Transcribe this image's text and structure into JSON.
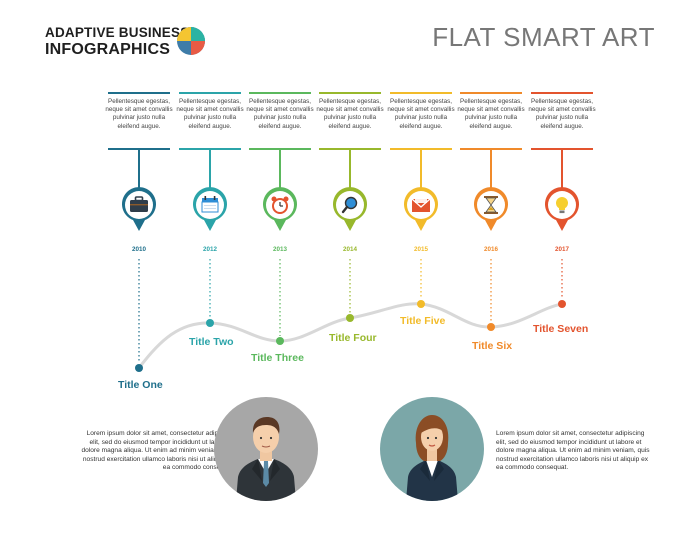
{
  "header": {
    "logo_line1": "ADAPTIVE BUSINESS",
    "logo_line2": "INFOGRAPHICS",
    "title": "FLAT SMART ART",
    "logo_colors": [
      "#f4c531",
      "#2bb3a3",
      "#3e7ca8",
      "#e85b45"
    ]
  },
  "steps": [
    {
      "year": "2010",
      "title": "Title One",
      "color": "#1f6f8b",
      "icon": "briefcase-icon",
      "text": "Pellentesque egestas, neque sit amet convallis pulvinar justo nulla eleifend augue."
    },
    {
      "year": "2012",
      "title": "Title Two",
      "color": "#2ba4a9",
      "icon": "calendar-icon",
      "text": "Pellentesque egestas, neque sit amet convallis pulvinar justo nulla eleifend augue."
    },
    {
      "year": "2013",
      "title": "Title Three",
      "color": "#5bb85d",
      "icon": "alarm-clock-icon",
      "text": "Pellentesque egestas, neque sit amet convallis pulvinar justo nulla eleifend augue."
    },
    {
      "year": "2014",
      "title": "Title Four",
      "color": "#98b82c",
      "icon": "magnifier-icon",
      "text": "Pellentesque egestas, neque sit amet convallis pulvinar justo nulla eleifend augue."
    },
    {
      "year": "2015",
      "title": "Title Five",
      "color": "#f2bb2a",
      "icon": "envelope-icon",
      "text": "Pellentesque egestas, neque sit amet convallis pulvinar justo nulla eleifend augue."
    },
    {
      "year": "2016",
      "title": "Title Six",
      "color": "#f08a2a",
      "icon": "hourglass-icon",
      "text": "Pellentesque egestas, neque sit amet convallis pulvinar justo nulla eleifend augue."
    },
    {
      "year": "2017",
      "title": "Title Seven",
      "color": "#e3542e",
      "icon": "lightbulb-icon",
      "text": "Pellentesque egestas, neque sit amet convallis pulvinar justo nulla eleifend augue."
    }
  ],
  "people": [
    {
      "icon": "businessman-icon",
      "text": "Lorem ipsum dolor sit amet, consectetur adipiscing elit, sed do eiusmod tempor incididunt ut labore et dolore magna aliqua. Ut enim ad minim veniam, quis nostrud exercitation ullamco laboris nisi ut aliquip ex ea commodo consequat."
    },
    {
      "icon": "businesswoman-icon",
      "text": "Lorem ipsum dolor sit amet, consectetur adipiscing elit, sed do eiusmod tempor incididunt ut labore et dolore magna aliqua. Ut enim ad minim veniam, quis nostrud exercitation ullamco laboris nisi ut aliquip ex ea commodo consequat."
    }
  ]
}
